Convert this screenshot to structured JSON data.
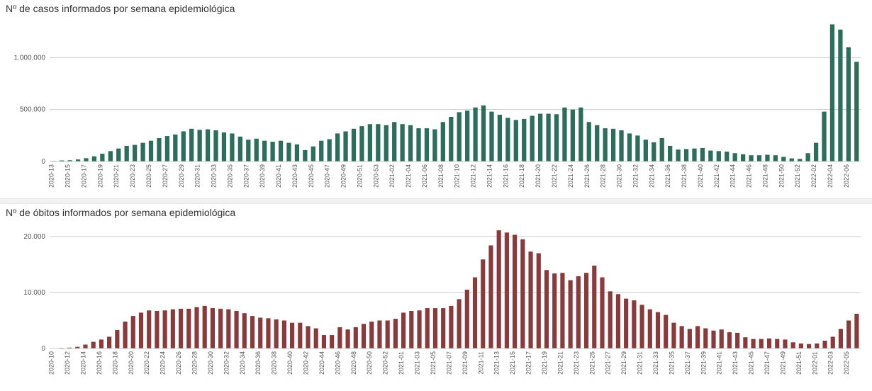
{
  "background_color": "#ffffff",
  "divider_color": "#f1f1f1",
  "cases_chart": {
    "type": "bar",
    "title": "Nº de casos informados por semana epidemiológica",
    "title_fontsize": 14,
    "title_color": "#333333",
    "bar_color": "#2c6e5a",
    "axis_color": "#cccccc",
    "ytick_color": "#555555",
    "xtick_color": "#555555",
    "xtick_fontsize": 9,
    "ytick_fontsize": 10,
    "ylim": [
      0,
      1350000
    ],
    "yticks": [
      0,
      500000,
      1000000
    ],
    "ytick_labels": [
      "0",
      "500.000",
      "1.000.000"
    ],
    "bar_width_ratio": 0.55,
    "first_label": "2020-13",
    "labels": [
      "2020-13",
      "2020-14",
      "2020-15",
      "2020-16",
      "2020-17",
      "2020-18",
      "2020-19",
      "2020-20",
      "2020-21",
      "2020-22",
      "2020-23",
      "2020-24",
      "2020-25",
      "2020-26",
      "2020-27",
      "2020-28",
      "2020-29",
      "2020-30",
      "2020-31",
      "2020-32",
      "2020-33",
      "2020-34",
      "2020-35",
      "2020-36",
      "2020-37",
      "2020-38",
      "2020-39",
      "2020-40",
      "2020-41",
      "2020-42",
      "2020-43",
      "2020-44",
      "2020-45",
      "2020-46",
      "2020-47",
      "2020-48",
      "2020-49",
      "2020-50",
      "2020-51",
      "2020-52",
      "2020-53",
      "2021-01",
      "2021-02",
      "2021-03",
      "2021-04",
      "2021-05",
      "2021-06",
      "2021-07",
      "2021-08",
      "2021-09",
      "2021-10",
      "2021-11",
      "2021-12",
      "2021-13",
      "2021-14",
      "2021-15",
      "2021-16",
      "2021-17",
      "2021-18",
      "2021-19",
      "2021-20",
      "2021-21",
      "2021-22",
      "2021-23",
      "2021-24",
      "2021-25",
      "2021-26",
      "2021-27",
      "2021-28",
      "2021-29",
      "2021-30",
      "2021-31",
      "2021-32",
      "2021-33",
      "2021-34",
      "2021-35",
      "2021-36",
      "2021-37",
      "2021-38",
      "2021-39",
      "2021-40",
      "2021-41",
      "2021-42",
      "2021-43",
      "2021-44",
      "2021-45",
      "2021-46",
      "2021-47",
      "2021-48",
      "2021-49",
      "2021-50",
      "2021-51",
      "2021-52",
      "2022-01",
      "2022-02",
      "2022-03",
      "2022-04",
      "2022-05",
      "2022-06",
      "2022-07"
    ],
    "values": [
      5000,
      10000,
      12000,
      20000,
      32000,
      50000,
      75000,
      100000,
      125000,
      150000,
      160000,
      180000,
      200000,
      225000,
      245000,
      260000,
      290000,
      315000,
      305000,
      310000,
      300000,
      280000,
      270000,
      240000,
      210000,
      220000,
      200000,
      190000,
      200000,
      180000,
      165000,
      110000,
      145000,
      200000,
      215000,
      270000,
      290000,
      315000,
      340000,
      360000,
      360000,
      350000,
      380000,
      360000,
      350000,
      320000,
      320000,
      310000,
      380000,
      430000,
      475000,
      490000,
      520000,
      540000,
      480000,
      450000,
      420000,
      400000,
      410000,
      440000,
      460000,
      460000,
      455000,
      520000,
      500000,
      520000,
      380000,
      350000,
      320000,
      315000,
      300000,
      270000,
      250000,
      210000,
      185000,
      225000,
      150000,
      115000,
      120000,
      125000,
      130000,
      105000,
      100000,
      95000,
      80000,
      70000,
      60000,
      60000,
      65000,
      60000,
      45000,
      30000,
      25000,
      80000,
      180000,
      480000,
      1320000,
      1270000,
      1100000,
      960000
    ]
  },
  "deaths_chart": {
    "type": "bar",
    "title": "Nº de óbitos informados por semana epidemiológica",
    "title_fontsize": 14,
    "title_color": "#333333",
    "bar_color": "#8a3a3a",
    "axis_color": "#cccccc",
    "ytick_color": "#555555",
    "xtick_color": "#555555",
    "xtick_fontsize": 9,
    "ytick_fontsize": 10,
    "ylim": [
      0,
      22000
    ],
    "yticks": [
      0,
      10000,
      20000
    ],
    "ytick_labels": [
      "0",
      "10.000",
      "20.000"
    ],
    "bar_width_ratio": 0.55,
    "first_label": "2020-10",
    "labels": [
      "2020-10",
      "2020-11",
      "2020-12",
      "2020-13",
      "2020-14",
      "2020-15",
      "2020-16",
      "2020-17",
      "2020-18",
      "2020-19",
      "2020-20",
      "2020-21",
      "2020-22",
      "2020-23",
      "2020-24",
      "2020-25",
      "2020-26",
      "2020-27",
      "2020-28",
      "2020-29",
      "2020-30",
      "2020-31",
      "2020-32",
      "2020-33",
      "2020-34",
      "2020-35",
      "2020-36",
      "2020-37",
      "2020-38",
      "2020-39",
      "2020-40",
      "2020-41",
      "2020-42",
      "2020-43",
      "2020-44",
      "2020-45",
      "2020-46",
      "2020-47",
      "2020-48",
      "2020-49",
      "2020-50",
      "2020-51",
      "2020-52",
      "2020-53",
      "2021-01",
      "2021-02",
      "2021-03",
      "2021-04",
      "2021-05",
      "2021-06",
      "2021-07",
      "2021-08",
      "2021-09",
      "2021-10",
      "2021-11",
      "2021-12",
      "2021-13",
      "2021-14",
      "2021-15",
      "2021-16",
      "2021-17",
      "2021-18",
      "2021-19",
      "2021-20",
      "2021-21",
      "2021-22",
      "2021-23",
      "2021-24",
      "2021-25",
      "2021-26",
      "2021-27",
      "2021-28",
      "2021-29",
      "2021-30",
      "2021-31",
      "2021-32",
      "2021-33",
      "2021-34",
      "2021-35",
      "2021-36",
      "2021-37",
      "2021-38",
      "2021-39",
      "2021-40",
      "2021-41",
      "2021-42",
      "2021-43",
      "2021-44",
      "2021-45",
      "2021-46",
      "2021-47",
      "2021-48",
      "2021-49",
      "2021-50",
      "2021-51",
      "2021-52",
      "2022-01",
      "2022-02",
      "2022-03",
      "2022-04",
      "2022-05",
      "2022-06"
    ],
    "values": [
      50,
      100,
      150,
      300,
      700,
      1200,
      1600,
      2100,
      3300,
      4800,
      5800,
      6400,
      6800,
      6700,
      6800,
      7000,
      7100,
      7100,
      7400,
      7600,
      7200,
      7100,
      7000,
      6700,
      6300,
      5800,
      5500,
      5400,
      5200,
      5000,
      4600,
      4600,
      4000,
      3600,
      2400,
      2400,
      3800,
      3400,
      3800,
      4400,
      4800,
      5000,
      5000,
      5300,
      6400,
      6700,
      6800,
      7200,
      7200,
      7200,
      7600,
      8800,
      10500,
      12700,
      15900,
      18400,
      21100,
      20700,
      20300,
      19500,
      17300,
      17000,
      14000,
      13400,
      13500,
      12200,
      12900,
      13500,
      14800,
      12700,
      10200,
      9700,
      8900,
      8600,
      7800,
      7000,
      6500,
      6000,
      4600,
      4000,
      3500,
      4000,
      3600,
      3200,
      3400,
      2900,
      2800,
      2000,
      1700,
      1700,
      1800,
      1700,
      1600,
      1100,
      900,
      800,
      900,
      1400,
      2100,
      3500,
      5000,
      6200
    ]
  }
}
